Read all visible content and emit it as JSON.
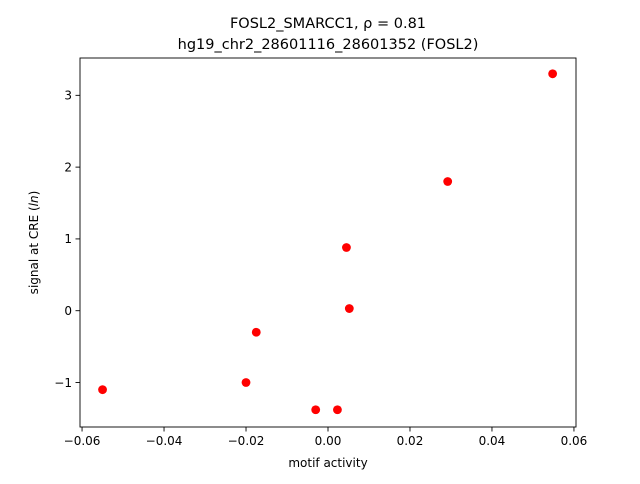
{
  "chart_data": {
    "type": "scatter",
    "title_line1": "FOSL2_SMARCC1, ρ = 0.81",
    "title_line2": "hg19_chr2_28601116_28601352 (FOSL2)",
    "xlabel": "motif activity",
    "ylabel": "signal at CRE (ln)",
    "xlim": [
      -0.0605,
      0.0605
    ],
    "ylim": [
      -1.62,
      3.52
    ],
    "xticks": [
      -0.06,
      -0.04,
      -0.02,
      0.0,
      0.02,
      0.04,
      0.06
    ],
    "xtick_labels": [
      "−0.06",
      "−0.04",
      "−0.02",
      "0.00",
      "0.02",
      "0.04",
      "0.06"
    ],
    "yticks": [
      -1,
      0,
      1,
      2,
      3
    ],
    "ytick_labels": [
      "−1",
      "0",
      "1",
      "2",
      "3"
    ],
    "grid": false,
    "marker_color": "#ff0000",
    "points": [
      {
        "x": -0.055,
        "y": -1.1
      },
      {
        "x": -0.02,
        "y": -1.0
      },
      {
        "x": -0.0175,
        "y": -0.3
      },
      {
        "x": -0.003,
        "y": -1.38
      },
      {
        "x": 0.0023,
        "y": -1.38
      },
      {
        "x": 0.0045,
        "y": 0.88
      },
      {
        "x": 0.0052,
        "y": 0.03
      },
      {
        "x": 0.0292,
        "y": 1.8
      },
      {
        "x": 0.0548,
        "y": 3.3
      }
    ]
  }
}
